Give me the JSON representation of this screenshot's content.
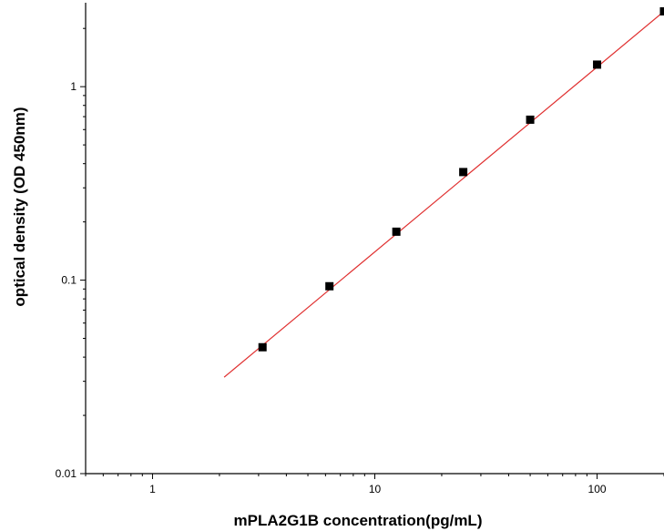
{
  "chart_data": {
    "type": "scatter",
    "title": "",
    "xlabel": "mPLA2G1B  concentration(pg/mL)",
    "ylabel": "optical density (OD 450nm)",
    "x_scale": "log",
    "y_scale": "log",
    "xlim": [
      0.5,
      200
    ],
    "ylim": [
      0.01,
      2.6
    ],
    "x_ticks": [
      {
        "value": 1,
        "label": "1"
      },
      {
        "value": 10,
        "label": "10"
      },
      {
        "value": 100,
        "label": "100"
      }
    ],
    "y_ticks": [
      {
        "value": 0.01,
        "label": "0.01"
      },
      {
        "value": 0.1,
        "label": "0.1"
      },
      {
        "value": 1,
        "label": "1"
      }
    ],
    "grid": false,
    "legend": "none",
    "series": [
      {
        "type": "scatter",
        "marker": "square",
        "color": "#000000",
        "points": [
          {
            "x": 3.125,
            "y": 0.045
          },
          {
            "x": 6.25,
            "y": 0.093
          },
          {
            "x": 12.5,
            "y": 0.178
          },
          {
            "x": 25,
            "y": 0.362
          },
          {
            "x": 50,
            "y": 0.675
          },
          {
            "x": 100,
            "y": 1.3
          },
          {
            "x": 200,
            "y": 2.45
          }
        ]
      },
      {
        "type": "line",
        "color": "#e03030",
        "fit": "linear on log-log",
        "points": [
          {
            "x": 2.1,
            "y": 0.0315
          },
          {
            "x": 200,
            "y": 2.45
          }
        ]
      }
    ]
  }
}
